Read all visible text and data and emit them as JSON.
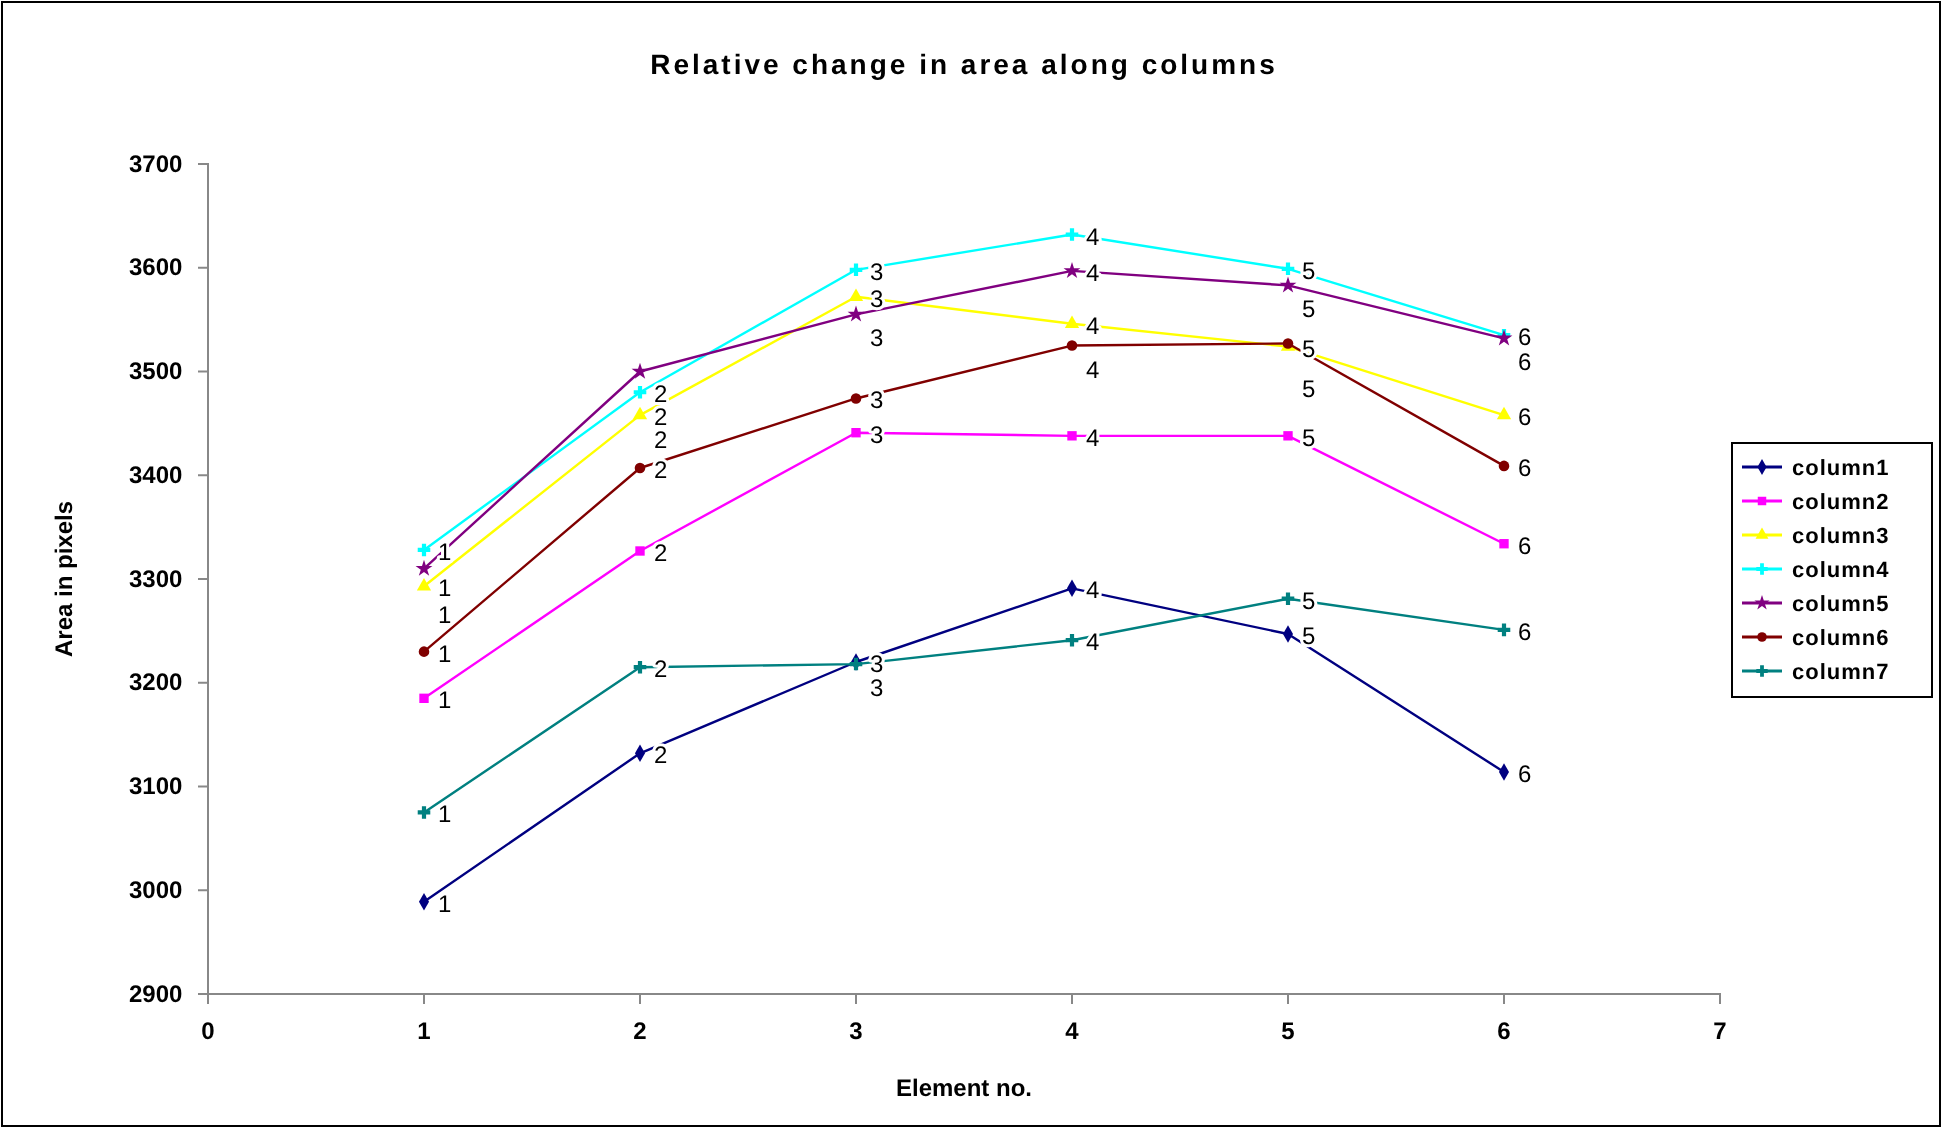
{
  "chart_data": {
    "type": "line",
    "title": "Relative change in area along columns",
    "xlabel": "Element no.",
    "ylabel": "Area in pixels",
    "x": [
      1,
      2,
      3,
      4,
      5,
      6
    ],
    "xlim": [
      0,
      7
    ],
    "xticks": [
      0,
      1,
      2,
      3,
      4,
      5,
      6,
      7
    ],
    "ylim": [
      2900,
      3700
    ],
    "yticks": [
      2900,
      3000,
      3100,
      3200,
      3300,
      3400,
      3500,
      3600,
      3700
    ],
    "grid": false,
    "legend": "right",
    "line_style": "solid",
    "series": [
      {
        "name": "column1",
        "color": "#000080",
        "marker": "diamond",
        "values": [
          2989,
          3132,
          3220,
          3291,
          3247,
          3114
        ]
      },
      {
        "name": "column2",
        "color": "#ff00ff",
        "marker": "square",
        "values": [
          3185,
          3327,
          3441,
          3438,
          3438,
          3334
        ]
      },
      {
        "name": "column3",
        "color": "#ffff00",
        "marker": "triangle",
        "values": [
          3293,
          3458,
          3572,
          3546,
          3524,
          3458
        ]
      },
      {
        "name": "column4",
        "color": "#00ffff",
        "marker": "cross",
        "values": [
          3328,
          3480,
          3598,
          3632,
          3599,
          3535
        ]
      },
      {
        "name": "column5",
        "color": "#800080",
        "marker": "star",
        "values": [
          3310,
          3500,
          3555,
          3597,
          3583,
          3532
        ]
      },
      {
        "name": "column6",
        "color": "#800000",
        "marker": "circle",
        "values": [
          3230,
          3407,
          3474,
          3525,
          3527,
          3409
        ]
      },
      {
        "name": "column7",
        "color": "#008080",
        "marker": "cross",
        "values": [
          3075,
          3215,
          3218,
          3241,
          3281,
          3251
        ]
      }
    ],
    "annotations": [
      {
        "text": "1",
        "x": 1,
        "y": 2989
      },
      {
        "text": "2",
        "x": 2,
        "y": 3132
      },
      {
        "text": "3",
        "x": 3,
        "y": 3220
      },
      {
        "text": "4",
        "x": 4,
        "y": 3291
      },
      {
        "text": "5",
        "x": 5,
        "y": 3247
      },
      {
        "text": "6",
        "x": 6,
        "y": 3114
      },
      {
        "text": "1",
        "x": 1,
        "y": 3185
      },
      {
        "text": "2",
        "x": 2,
        "y": 3327
      },
      {
        "text": "3",
        "x": 3,
        "y": 3441
      },
      {
        "text": "4",
        "x": 4,
        "y": 3438
      },
      {
        "text": "5",
        "x": 5,
        "y": 3438
      },
      {
        "text": "6",
        "x": 6,
        "y": 3334
      },
      {
        "text": "1",
        "x": 1,
        "y": 3293
      },
      {
        "text": "2",
        "x": 2,
        "y": 3458
      },
      {
        "text": "3",
        "x": 3,
        "y": 3572
      },
      {
        "text": "4",
        "x": 4,
        "y": 3546
      },
      {
        "text": "5",
        "x": 5,
        "y": 3524
      },
      {
        "text": "6",
        "x": 6,
        "y": 3458
      },
      {
        "text": "1",
        "x": 1,
        "y": 3328
      },
      {
        "text": "2",
        "x": 2,
        "y": 3480
      },
      {
        "text": "3",
        "x": 3,
        "y": 3598
      },
      {
        "text": "4",
        "x": 4,
        "y": 3632
      },
      {
        "text": "5",
        "x": 5,
        "y": 3599
      },
      {
        "text": "6",
        "x": 6,
        "y": 3535
      },
      {
        "text": "1",
        "x": 1,
        "y": 3310
      },
      {
        "text": "2",
        "x": 2,
        "y": 3500
      },
      {
        "text": "3",
        "x": 3,
        "y": 3555
      },
      {
        "text": "4",
        "x": 4,
        "y": 3597
      },
      {
        "text": "5",
        "x": 5,
        "y": 3583
      },
      {
        "text": "6",
        "x": 6,
        "y": 3532
      },
      {
        "text": "1",
        "x": 1,
        "y": 3230
      },
      {
        "text": "2",
        "x": 2,
        "y": 3407
      },
      {
        "text": "3",
        "x": 3,
        "y": 3474
      },
      {
        "text": "4",
        "x": 4,
        "y": 3525
      },
      {
        "text": "5",
        "x": 5,
        "y": 3527
      },
      {
        "text": "6",
        "x": 6,
        "y": 3409
      },
      {
        "text": "1",
        "x": 1,
        "y": 3075
      },
      {
        "text": "2",
        "x": 2,
        "y": 3215
      },
      {
        "text": "3",
        "x": 3,
        "y": 3218
      },
      {
        "text": "4",
        "x": 4,
        "y": 3241
      },
      {
        "text": "5",
        "x": 5,
        "y": 3281
      },
      {
        "text": "6",
        "x": 6,
        "y": 3251
      }
    ]
  }
}
